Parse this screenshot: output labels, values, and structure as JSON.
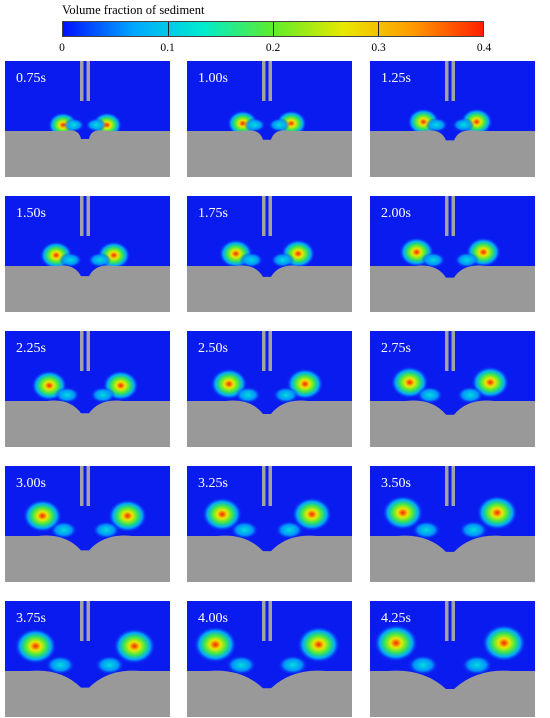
{
  "legend": {
    "title": "Volume fraction of sediment",
    "ticks": [
      "0",
      "0.1",
      "0.2",
      "0.3",
      "0.4"
    ],
    "tick_values": [
      0,
      0.1,
      0.2,
      0.3,
      0.4
    ],
    "range": [
      0,
      0.4
    ],
    "colors": [
      "#0010ff",
      "#00a6ff",
      "#00eccf",
      "#5dec2a",
      "#e8e800",
      "#ff9a00",
      "#ff2000"
    ]
  },
  "colors": {
    "water": "#0a1bef",
    "bed": "#999999",
    "pipe": "#a3a3a3",
    "label_text": "#ffffff"
  },
  "panels": [
    {
      "label": "0.75s"
    },
    {
      "label": "1.00s"
    },
    {
      "label": "1.25s"
    },
    {
      "label": "1.50s"
    },
    {
      "label": "1.75s"
    },
    {
      "label": "2.00s"
    },
    {
      "label": "2.25s"
    },
    {
      "label": "2.50s"
    },
    {
      "label": "2.75s"
    },
    {
      "label": "3.00s"
    },
    {
      "label": "3.25s"
    },
    {
      "label": "3.50s"
    },
    {
      "label": "3.75s"
    },
    {
      "label": "4.00s"
    },
    {
      "label": "4.25s"
    }
  ]
}
